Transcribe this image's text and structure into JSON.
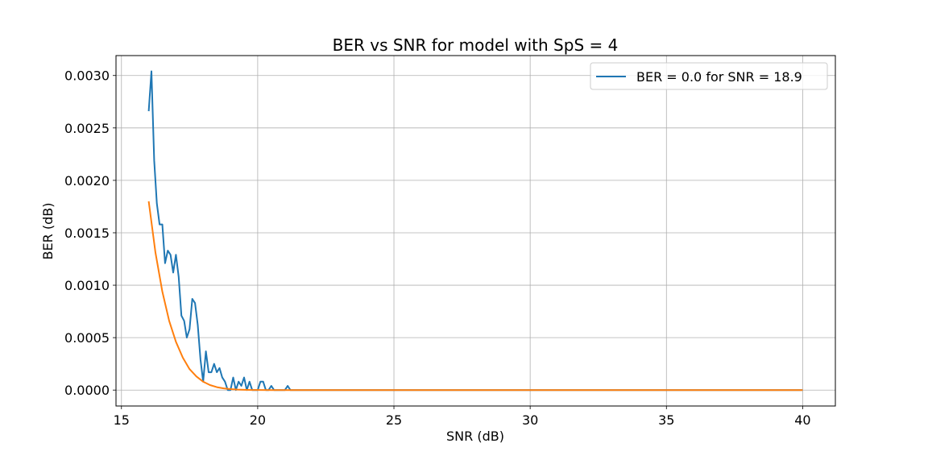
{
  "chart_data": {
    "type": "line",
    "title": "BER vs SNR for model with SpS = 4",
    "xlabel": "SNR (dB)",
    "ylabel": "BER (dB)",
    "xlim": [
      14.8,
      41.2
    ],
    "ylim": [
      -0.000152,
      0.00319
    ],
    "xticks": [
      15,
      20,
      25,
      30,
      35,
      40
    ],
    "xtick_labels": [
      "15",
      "20",
      "25",
      "30",
      "35",
      "40"
    ],
    "yticks": [
      0.0,
      0.0005,
      0.001,
      0.0015,
      0.002,
      0.0025,
      0.003
    ],
    "ytick_labels": [
      "0.0000",
      "0.0005",
      "0.0010",
      "0.0015",
      "0.0020",
      "0.0025",
      "0.0030"
    ],
    "grid": true,
    "legend_position": "top-right",
    "colors": {
      "blue": "#1f77b4",
      "orange": "#ff7f0e"
    },
    "series": [
      {
        "name": "BER = 0.0 for SNR = 18.9",
        "color": "#1f77b4",
        "x": [
          16.0,
          16.1,
          16.2,
          16.3,
          16.4,
          16.5,
          16.6,
          16.7,
          16.8,
          16.9,
          17.0,
          17.1,
          17.2,
          17.3,
          17.4,
          17.5,
          17.6,
          17.7,
          17.8,
          17.9,
          18.0,
          18.1,
          18.2,
          18.3,
          18.4,
          18.5,
          18.6,
          18.7,
          18.8,
          18.9,
          19.0,
          19.1,
          19.2,
          19.3,
          19.4,
          19.5,
          19.6,
          19.7,
          19.8,
          19.9,
          20.0,
          20.1,
          20.2,
          20.3,
          20.4,
          20.5,
          20.6,
          20.7,
          20.8,
          20.9,
          21.0,
          21.1,
          21.2,
          21.3,
          22.0,
          25.0,
          30.0,
          35.0,
          40.0
        ],
        "y": [
          0.00266,
          0.00304,
          0.00219,
          0.00178,
          0.00158,
          0.00158,
          0.00121,
          0.00133,
          0.00129,
          0.00112,
          0.00129,
          0.00108,
          0.00071,
          0.00066,
          0.0005,
          0.00058,
          0.00087,
          0.00083,
          0.00062,
          0.00029,
          8e-05,
          0.00037,
          0.00017,
          0.00017,
          0.00025,
          0.00017,
          0.00021,
          0.00012,
          8e-05,
          0.0,
          0.0,
          0.00012,
          0.0,
          8e-05,
          4e-05,
          0.00012,
          0.0,
          8e-05,
          0.0,
          0.0,
          0.0,
          8e-05,
          8e-05,
          0.0,
          0.0,
          4e-05,
          0.0,
          0.0,
          0.0,
          0.0,
          0.0,
          4e-05,
          0.0,
          0.0,
          0.0,
          0.0,
          0.0,
          0.0,
          0.0
        ]
      },
      {
        "name": "",
        "color": "#ff7f0e",
        "x": [
          16.0,
          16.25,
          16.5,
          16.75,
          17.0,
          17.25,
          17.5,
          17.75,
          18.0,
          18.25,
          18.5,
          18.75,
          19.0,
          19.25,
          19.5,
          19.75,
          20.0,
          20.5,
          21.0,
          22.0,
          24.0,
          28.0,
          32.0,
          36.0,
          40.0
        ],
        "y": [
          0.0018,
          0.00131,
          0.00094,
          0.00066,
          0.00046,
          0.00031,
          0.0002,
          0.00013,
          8e-05,
          4.8e-05,
          2.8e-05,
          1.6e-05,
          9e-06,
          5e-06,
          2.5e-06,
          1.2e-06,
          6e-07,
          1e-07,
          0.0,
          0.0,
          0.0,
          0.0,
          0.0,
          0.0,
          0.0
        ]
      }
    ]
  }
}
